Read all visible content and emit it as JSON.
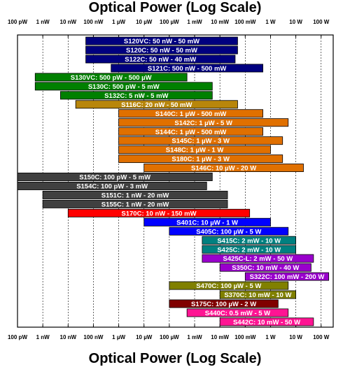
{
  "chart_data": {
    "type": "bar",
    "orientation": "horizontal",
    "title": "Optical Power (Log Scale)",
    "xlabel": "Optical Power (Log Scale)",
    "x_scale": "log",
    "x_unit": "W",
    "xlim": [
      1e-10,
      300
    ],
    "x_ticks": [
      1e-10,
      1e-09,
      1e-08,
      1e-07,
      1e-06,
      1e-05,
      0.0001,
      0.001,
      0.01,
      0.1,
      1,
      10,
      100
    ],
    "x_tick_labels": [
      "100 pW",
      "1 nW",
      "10 nW",
      "100 nW",
      "1 µW",
      "10 µW",
      "100 µW",
      "1 mW",
      "10 mW",
      "100 mW",
      "1 W",
      "10 W",
      "100 W"
    ],
    "grid": true,
    "bars": [
      {
        "label": "S120VC: 50 nW - 50 mW",
        "min": 5e-08,
        "max": 0.05,
        "color": "#000080"
      },
      {
        "label": "S120C: 50 nW - 50 mW",
        "min": 5e-08,
        "max": 0.05,
        "color": "#000080"
      },
      {
        "label": "S122C: 50 nW - 40 mW",
        "min": 5e-08,
        "max": 0.04,
        "color": "#000080"
      },
      {
        "label": "S121C: 500 nW - 500 mW",
        "min": 5e-07,
        "max": 0.5,
        "color": "#000080"
      },
      {
        "label": "S130VC: 500 pW - 500 µW",
        "min": 5e-10,
        "max": 0.0005,
        "color": "#008000"
      },
      {
        "label": "S130C: 500 pW - 5 mW",
        "min": 5e-10,
        "max": 0.005,
        "color": "#008000"
      },
      {
        "label": "S132C: 5 nW - 5 mW",
        "min": 5e-09,
        "max": 0.005,
        "color": "#008000"
      },
      {
        "label": "S116C: 20 nW - 50 mW",
        "min": 2e-08,
        "max": 0.05,
        "color": "#b8860b"
      },
      {
        "label": "S140C: 1 µW - 500 mW",
        "min": 1e-06,
        "max": 0.5,
        "color": "#e07000"
      },
      {
        "label": "S142C: 1 µW - 5 W",
        "min": 1e-06,
        "max": 5,
        "color": "#e07000"
      },
      {
        "label": "S144C: 1 µW - 500 mW",
        "min": 1e-06,
        "max": 0.5,
        "color": "#e07000"
      },
      {
        "label": "S145C: 1 µW - 3 W",
        "min": 1e-06,
        "max": 3,
        "color": "#e07000"
      },
      {
        "label": "S148C: 1 µW - 1 W",
        "min": 1e-06,
        "max": 1,
        "color": "#e07000"
      },
      {
        "label": "S180C: 1 µW - 3 W",
        "min": 1e-06,
        "max": 3,
        "color": "#e07000"
      },
      {
        "label": "S146C: 10 µW - 20 W",
        "min": 1e-05,
        "max": 20,
        "color": "#e07000"
      },
      {
        "label": "S150C: 100 pW - 5 mW",
        "min": 1e-10,
        "max": 0.005,
        "color": "#404040"
      },
      {
        "label": "S154C: 100 pW - 3 mW",
        "min": 1e-10,
        "max": 0.003,
        "color": "#404040"
      },
      {
        "label": "S151C: 1 nW - 20 mW",
        "min": 1e-09,
        "max": 0.02,
        "color": "#404040"
      },
      {
        "label": "S155C: 1 nW - 20 mW",
        "min": 1e-09,
        "max": 0.02,
        "color": "#404040"
      },
      {
        "label": "S170C: 10 nW - 150 mW",
        "min": 1e-08,
        "max": 0.15,
        "color": "#ff0000"
      },
      {
        "label": "S401C: 10 µW - 1 W",
        "min": 1e-05,
        "max": 1,
        "color": "#0000ff"
      },
      {
        "label": "S405C: 100 µW - 5 W",
        "min": 0.0001,
        "max": 5,
        "color": "#0000ff"
      },
      {
        "label": "S415C: 2 mW - 10 W",
        "min": 0.002,
        "max": 10,
        "color": "#008080"
      },
      {
        "label": "S425C: 2 mW - 10 W",
        "min": 0.002,
        "max": 10,
        "color": "#008080"
      },
      {
        "label": "S425C-L: 2 mW - 50 W",
        "min": 0.002,
        "max": 50,
        "color": "#9900cc"
      },
      {
        "label": "S350C: 10 mW - 40 W",
        "min": 0.01,
        "max": 40,
        "color": "#9900cc"
      },
      {
        "label": "S322C: 100 mW - 200 W",
        "min": 0.1,
        "max": 200,
        "color": "#9900cc"
      },
      {
        "label": "S470C: 100 µW - 5 W",
        "min": 0.0001,
        "max": 5,
        "color": "#808000"
      },
      {
        "label": "S370C: 10 mW - 10 W",
        "min": 0.01,
        "max": 10,
        "color": "#808000"
      },
      {
        "label": "S175C: 100 µW - 2 W",
        "min": 0.0001,
        "max": 2,
        "color": "#800000"
      },
      {
        "label": "S440C: 0.5 mW - 5 W",
        "min": 0.0005,
        "max": 5,
        "color": "#ff1493"
      },
      {
        "label": "S442C: 10 mW - 50 W",
        "min": 0.01,
        "max": 50,
        "color": "#ff1493"
      }
    ]
  }
}
